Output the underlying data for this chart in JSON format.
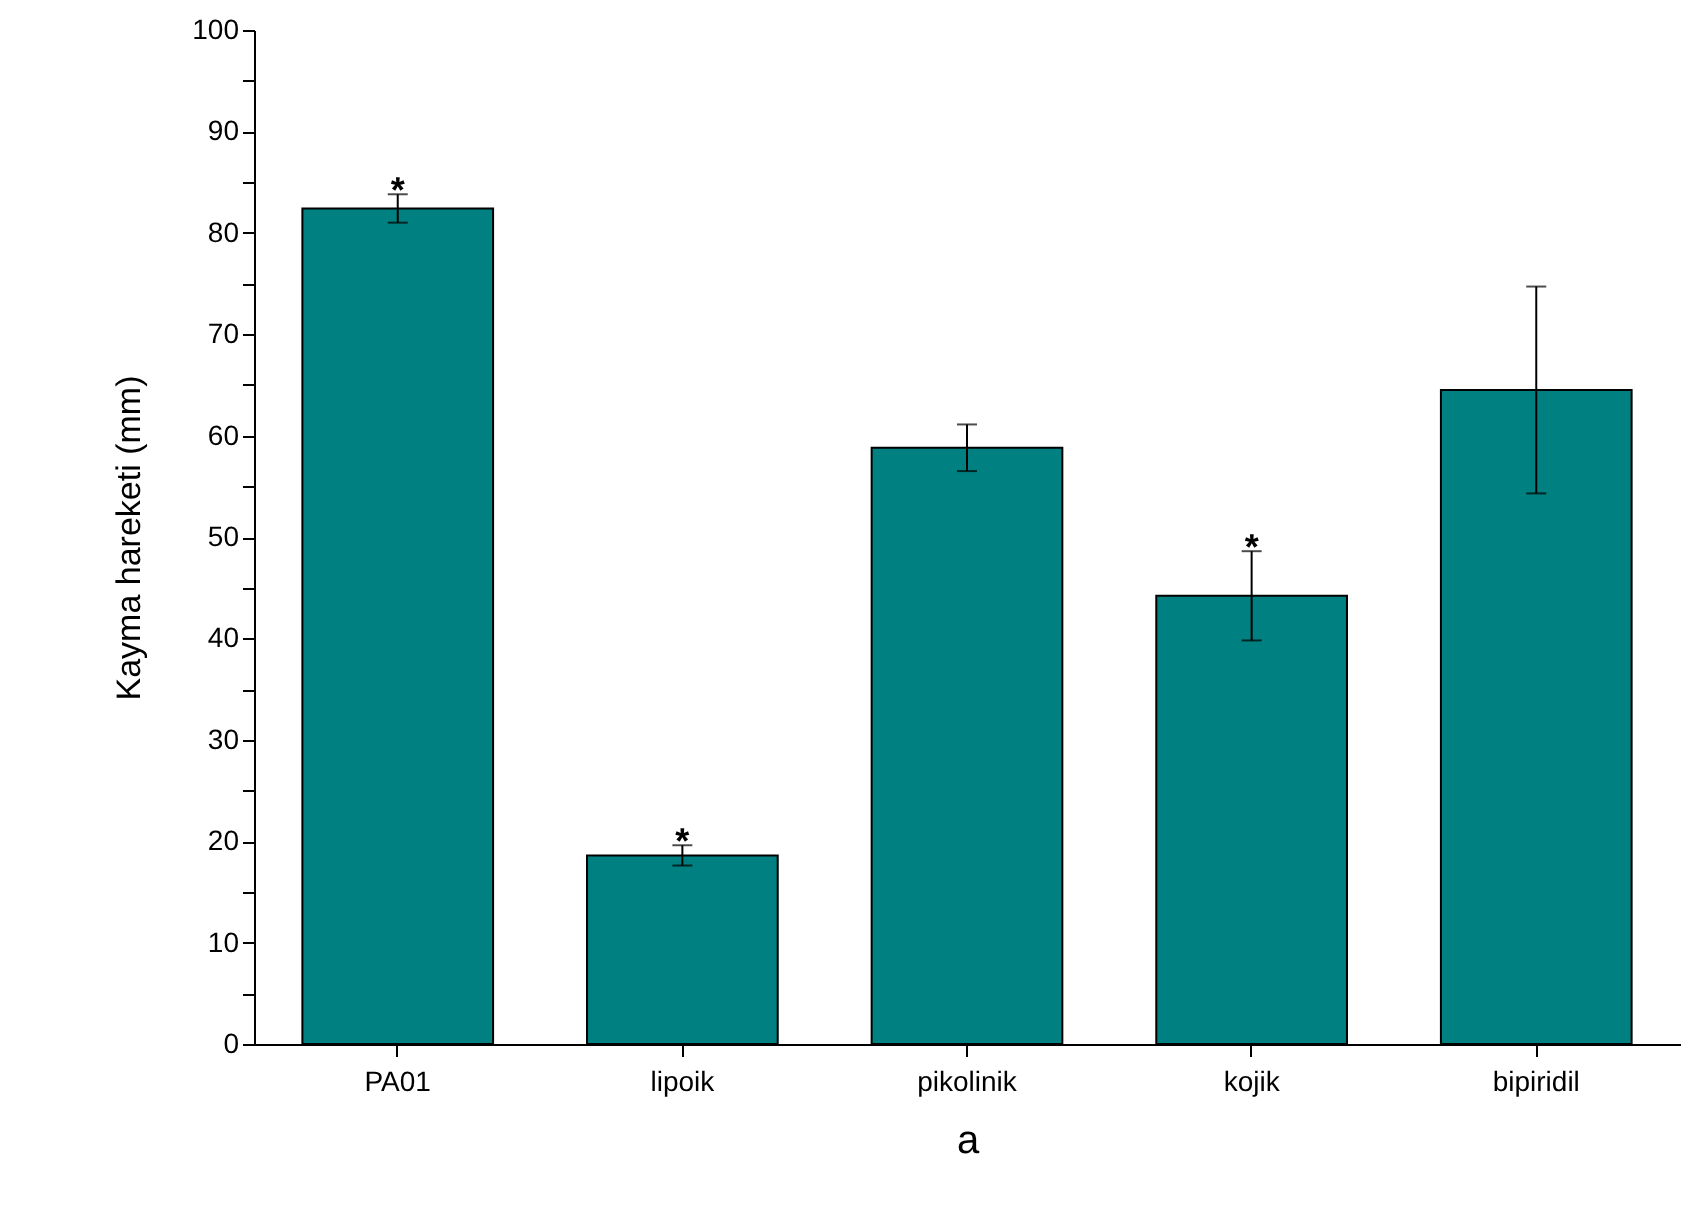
{
  "chart_data": {
    "type": "bar",
    "xlabel": "a",
    "ylabel": "Kayma hareketi (mm)",
    "categories": [
      "PA01",
      "lipoik",
      "pikolinik",
      "kojik",
      "bipiridil"
    ],
    "values": [
      82.4,
      18.6,
      58.8,
      44.2,
      64.5
    ],
    "errors": [
      1.4,
      1.0,
      2.3,
      4.4,
      10.2
    ],
    "color": "#008080",
    "ylim": [
      0,
      100
    ],
    "yticks": [
      0,
      {
        "value": 5,
        "label": null
      },
      10,
      {
        "value": 15,
        "label": null
      },
      20,
      {
        "value": 25,
        "label": null
      },
      30,
      {
        "value": 35,
        "label": null
      },
      40,
      {
        "value": 45,
        "label": null
      },
      50,
      {
        "value": 55,
        "label": null
      },
      60,
      {
        "value": 65,
        "label": null
      },
      70,
      {
        "value": 75,
        "label": null
      },
      80,
      {
        "value": 85,
        "label": null
      },
      90,
      {
        "value": 95,
        "label": null
      },
      100
    ],
    "annotations": [
      {
        "text": "*",
        "x": "PA01",
        "y": 83.8
      },
      {
        "text": "*",
        "x": "lipoik",
        "y": 19.6
      },
      {
        "text": "*",
        "x": "kojik",
        "y": 48.6
      }
    ],
    "grid": false
  }
}
